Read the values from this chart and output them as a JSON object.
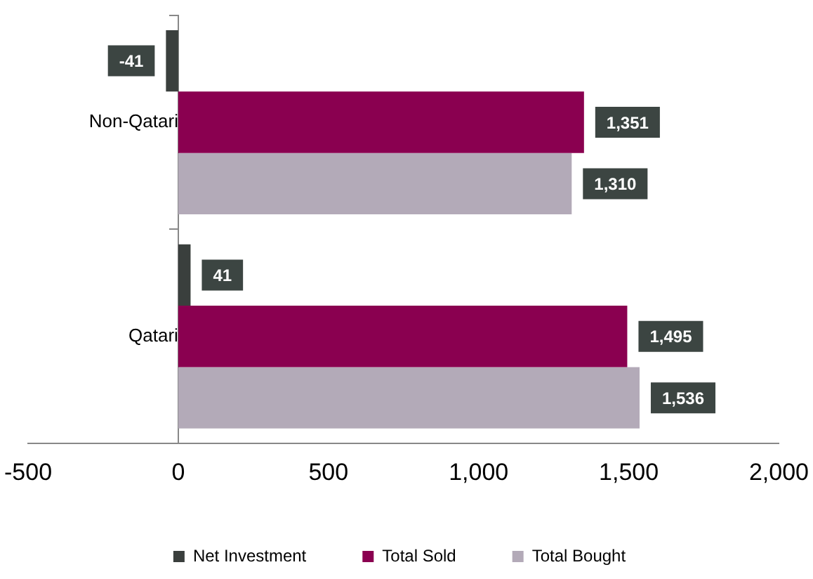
{
  "chart_data": {
    "type": "bar",
    "orientation": "horizontal",
    "categories": [
      "Non-Qatari",
      "Qatari"
    ],
    "series": [
      {
        "name": "Net Investment",
        "color": "#3a3f3d",
        "values": [
          -41,
          41
        ],
        "value_labels": [
          "-41",
          "41"
        ]
      },
      {
        "name": "Total Sold",
        "color": "#8a0050",
        "values": [
          1351,
          1495
        ],
        "value_labels": [
          "1,351",
          "1,495"
        ]
      },
      {
        "name": "Total Bought",
        "color": "#b3aab8",
        "values": [
          1310,
          1536
        ],
        "value_labels": [
          "1,310",
          "1,536"
        ]
      }
    ],
    "xlim": [
      -500,
      2000
    ],
    "xticks": [
      -500,
      0,
      500,
      {
        "value": 1000,
        "label": "1,000"
      },
      {
        "value": 1500,
        "label": "1,500"
      },
      {
        "value": 2000,
        "label": "2,000"
      }
    ],
    "legend": "bottom"
  }
}
